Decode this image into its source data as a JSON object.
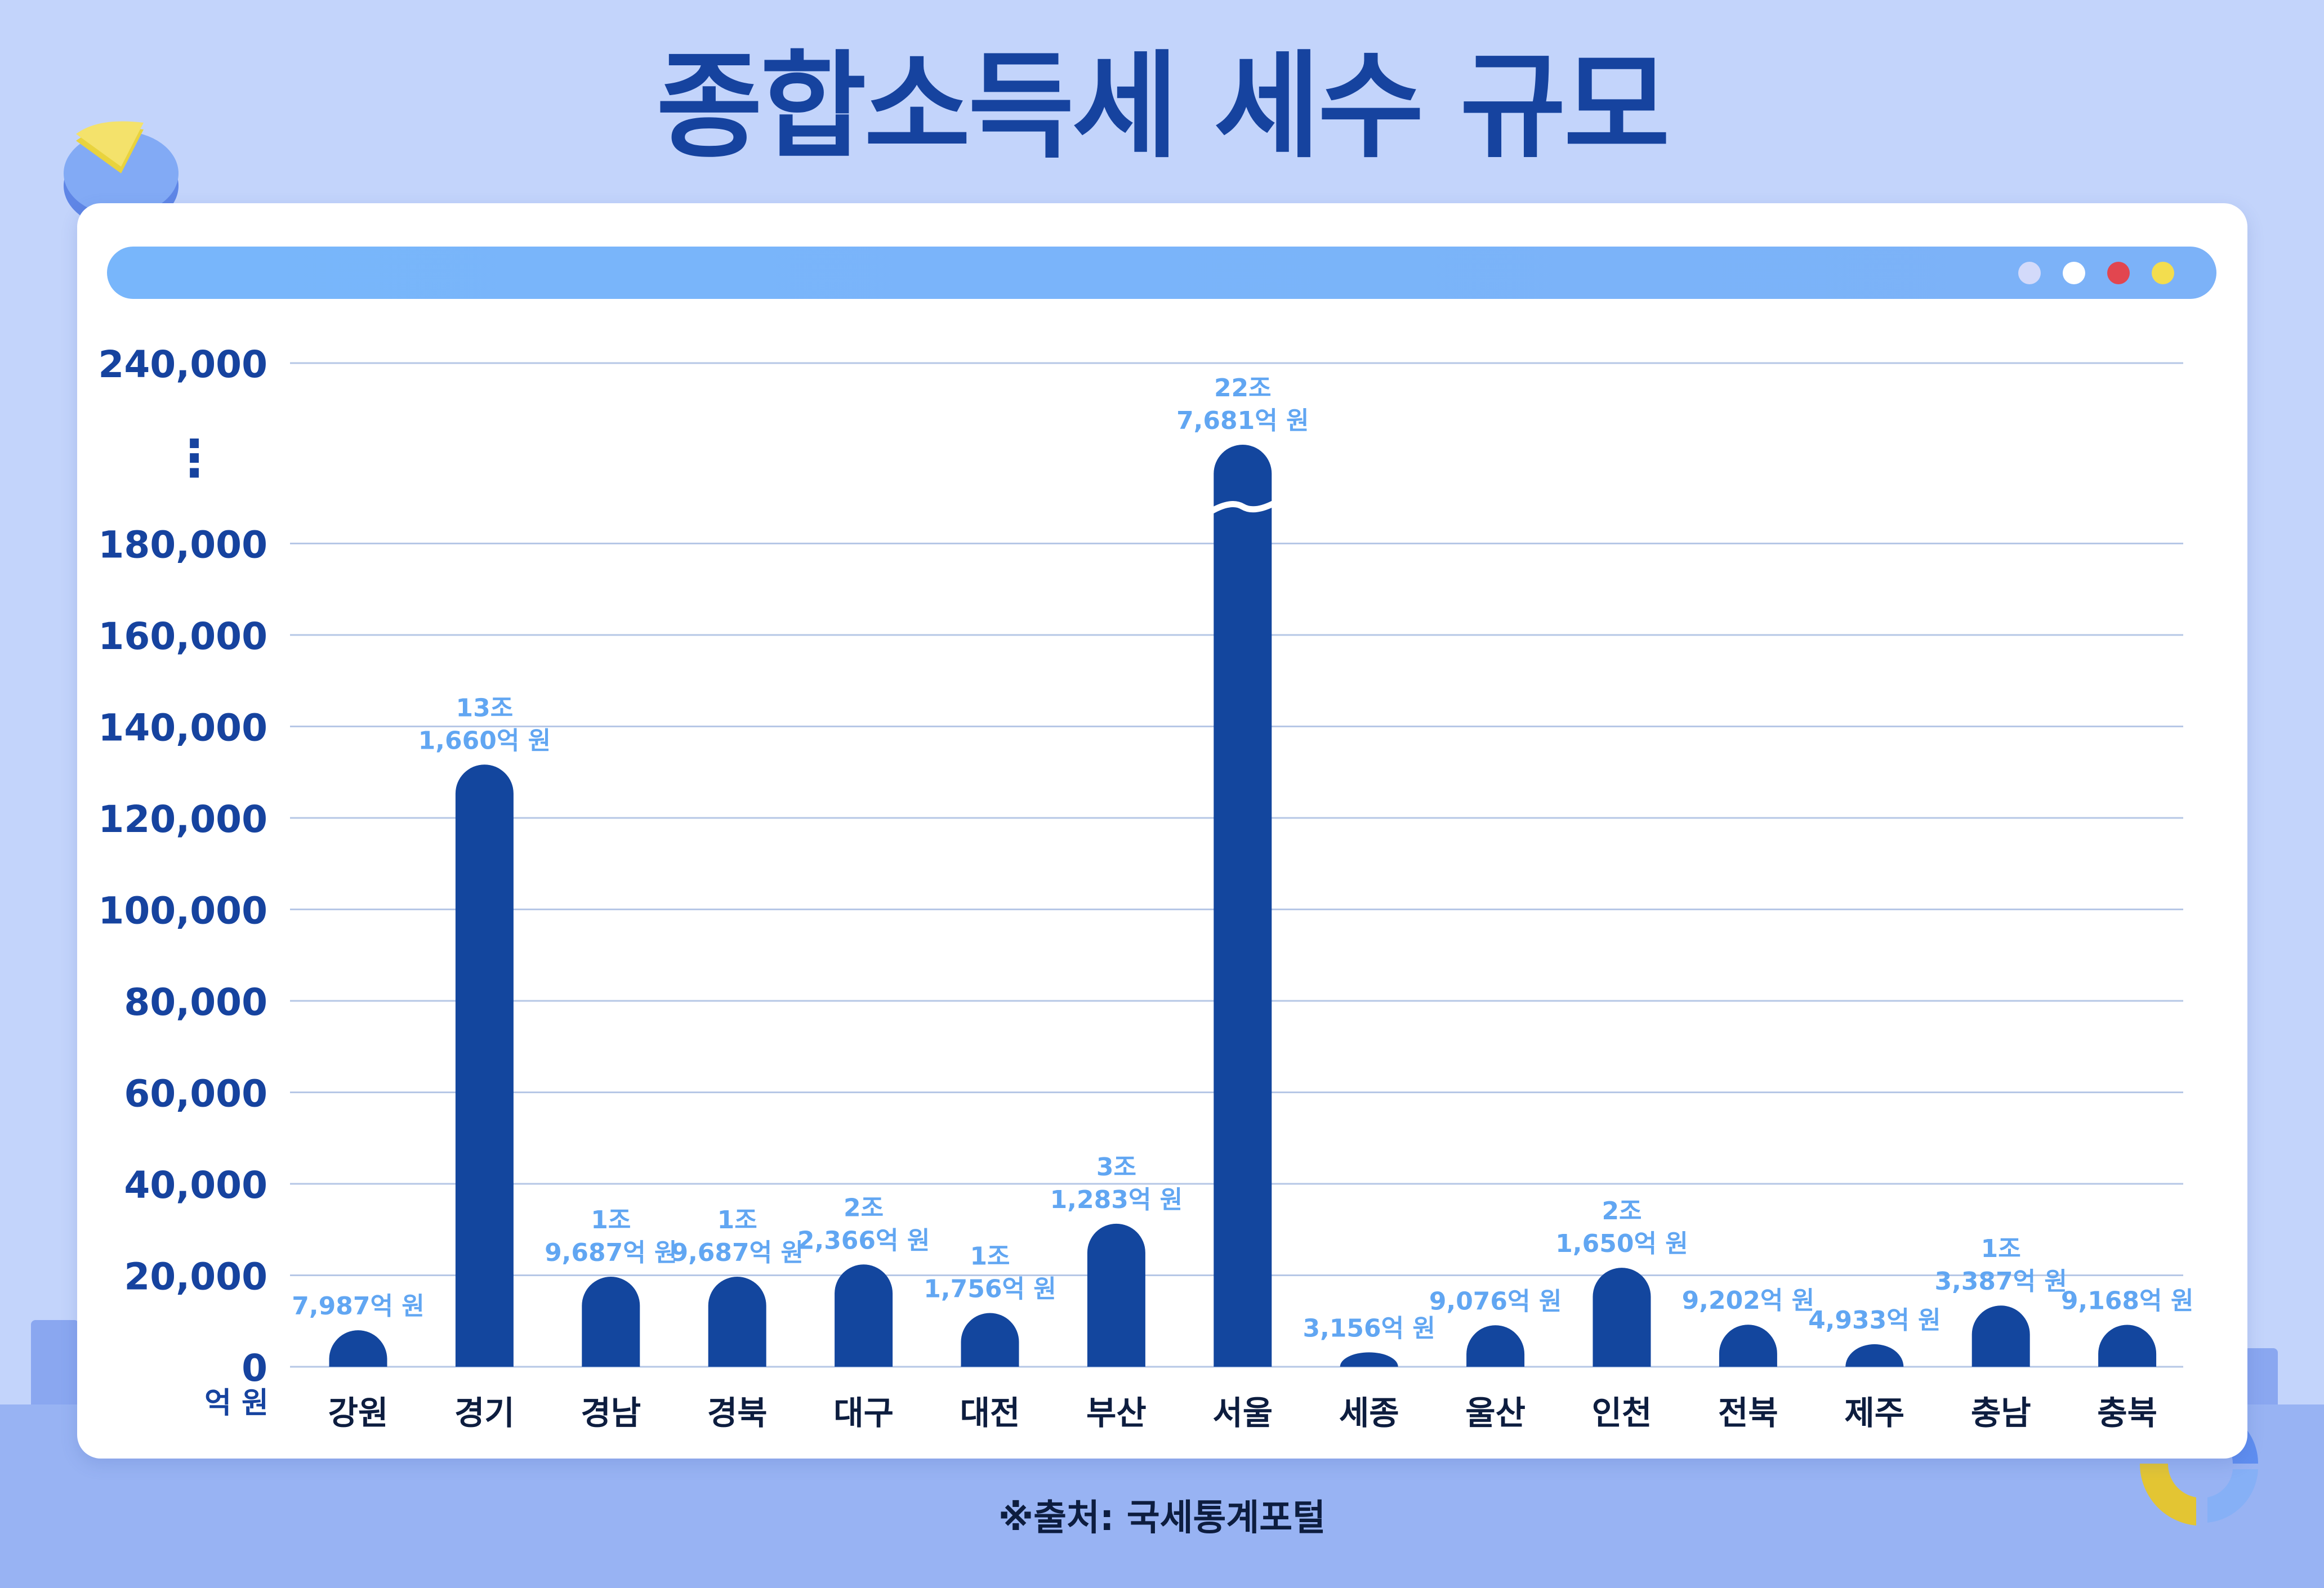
{
  "title": "종합소득세 세수 규모",
  "source": "※출처: 국세통계포털",
  "window_dots": [
    "#d3dafa",
    "#ffffff",
    "#e2464f",
    "#f3dd4e"
  ],
  "colors": {
    "bar": "#13469e",
    "value_label": "#61a6f2",
    "axis_text": "#16439f",
    "grid": "#b6c7e6"
  },
  "chart_data": {
    "type": "bar",
    "title": "종합소득세 세수 규모",
    "xlabel": "",
    "ylabel": "억 원",
    "ylim": [
      0,
      240000
    ],
    "axis_break": {
      "from": 180000,
      "to": 240000,
      "marker": "⋮"
    },
    "y_ticks": [
      "0",
      "20,000",
      "40,000",
      "60,000",
      "80,000",
      "100,000",
      "120,000",
      "140,000",
      "160,000",
      "180,000",
      "240,000"
    ],
    "grid": true,
    "categories": [
      "강원",
      "경기",
      "경남",
      "경북",
      "대구",
      "대전",
      "부산",
      "서울",
      "세종",
      "울산",
      "인천",
      "전북",
      "제주",
      "충남",
      "충북"
    ],
    "values": [
      7987,
      131660,
      19687,
      19687,
      22366,
      11756,
      31283,
      227681,
      3156,
      9076,
      21650,
      9202,
      4933,
      13387,
      9168
    ],
    "value_labels": [
      [
        "7,987억 원"
      ],
      [
        "13조",
        "1,660억 원"
      ],
      [
        "1조",
        "9,687억 원"
      ],
      [
        "1조",
        "9,687억 원"
      ],
      [
        "2조",
        "2,366억 원"
      ],
      [
        "1조",
        "1,756억 원"
      ],
      [
        "3조",
        "1,283억 원"
      ],
      [
        "22조",
        "7,681억 원"
      ],
      [
        "3,156억 원"
      ],
      [
        "9,076억 원"
      ],
      [
        "2조",
        "1,650억 원"
      ],
      [
        "9,202억 원"
      ],
      [
        "4,933억 원"
      ],
      [
        "1조",
        "3,387억 원"
      ],
      [
        "9,168억 원"
      ]
    ]
  }
}
